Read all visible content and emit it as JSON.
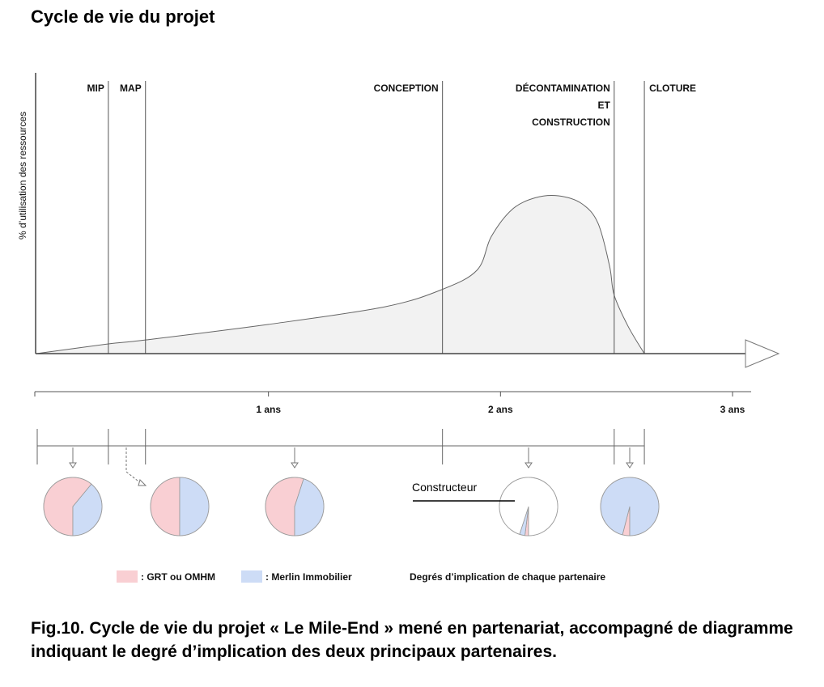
{
  "title": "Cycle de vie du projet",
  "caption": "Fig.10. Cycle de vie du projet « Le Mile-End » mené en partenariat, accompagné de diagramme indiquant le degré d’implication des deux principaux partenaires.",
  "colors": {
    "grt": "#f9cfd3",
    "merlin": "#cddcf6",
    "area_fill": "#f2f2f2",
    "line": "#666666"
  },
  "chart_data": [
    {
      "type": "area",
      "title": "",
      "ylabel": "% d’utilisation des ressources",
      "xlabel": "",
      "grid": false,
      "xlim": [
        0,
        3
      ],
      "ylim": [
        0,
        100
      ],
      "x_ticks": [
        {
          "value": 1,
          "label": "1 ans"
        },
        {
          "value": 2,
          "label": "2 ans"
        },
        {
          "value": 3,
          "label": "3 ans"
        }
      ],
      "phases": [
        {
          "name": "MIP",
          "end_years": 0.31
        },
        {
          "name": "MAP",
          "end_years": 0.47
        },
        {
          "name": "CONCEPTION",
          "end_years": 1.75
        },
        {
          "name": "DÉCONTAMINATION ET CONSTRUCTION",
          "lines": [
            "DÉCONTAMINATION",
            "ET",
            "CONSTRUCTION"
          ],
          "end_years": 2.49
        },
        {
          "name": "CLOTURE",
          "end_years": 2.62
        }
      ],
      "series": [
        {
          "x": [
            0,
            0.31,
            0.47,
            1.0,
            1.5,
            1.75,
            1.9,
            1.96,
            2.05,
            2.15,
            2.25,
            2.35,
            2.42,
            2.47,
            2.49,
            2.55,
            2.62
          ],
          "y": [
            0,
            5,
            7,
            15,
            24,
            33,
            43,
            60,
            74,
            80,
            81,
            77,
            67,
            45,
            30,
            14,
            0
          ]
        }
      ]
    },
    {
      "type": "pie",
      "title": "Degrés d’implication de chaque partenaire",
      "legend": [
        {
          "label": ": GRT ou OMHM",
          "color": "#f9cfd3"
        },
        {
          "label": ": Merlin Immobilier",
          "color": "#cddcf6"
        }
      ],
      "annotation": "Constructeur",
      "pies": [
        {
          "phase": "MIP",
          "slices": [
            {
              "name": "GRT ou OMHM",
              "value": 61
            },
            {
              "name": "Merlin Immobilier",
              "value": 39
            }
          ]
        },
        {
          "phase": "MAP",
          "slices": [
            {
              "name": "GRT ou OMHM",
              "value": 50
            },
            {
              "name": "Merlin Immobilier",
              "value": 50
            }
          ]
        },
        {
          "phase": "CONCEPTION",
          "slices": [
            {
              "name": "GRT ou OMHM",
              "value": 55
            },
            {
              "name": "Merlin Immobilier",
              "value": 45
            }
          ]
        },
        {
          "phase": "DÉCONTAMINATION ET CONSTRUCTION",
          "slices": [
            {
              "name": "GRT ou OMHM",
              "value": 2
            },
            {
              "name": "Merlin Immobilier",
              "value": 3
            },
            {
              "name": "Constructeur",
              "value": 95
            }
          ]
        },
        {
          "phase": "CLOTURE",
          "slices": [
            {
              "name": "GRT ou OMHM",
              "value": 4
            },
            {
              "name": "Merlin Immobilier",
              "value": 96
            }
          ]
        }
      ]
    }
  ]
}
